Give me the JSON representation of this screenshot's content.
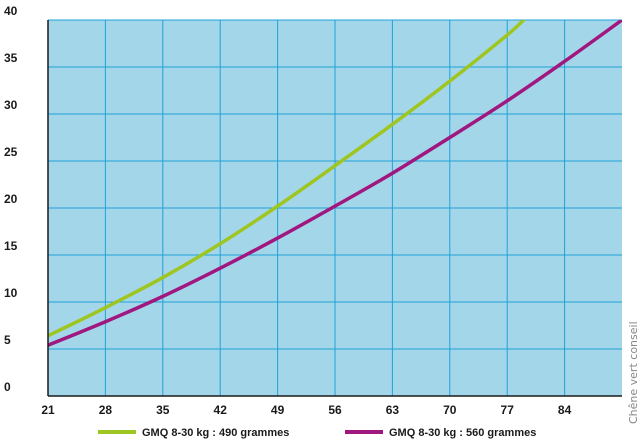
{
  "chart_data": {
    "type": "line",
    "xlim": [
      21,
      91
    ],
    "ylim": [
      0,
      40
    ],
    "x_ticks": [
      21,
      28,
      35,
      42,
      49,
      56,
      63,
      70,
      77,
      84
    ],
    "y_ticks": [
      0,
      5,
      10,
      15,
      20,
      25,
      30,
      35,
      40
    ],
    "grid": true,
    "legend_position": "bottom",
    "background_color": "#a4d6e9",
    "grid_color": "#1fa2d8",
    "series": [
      {
        "name": "GMQ 8-30 kg : 490 grammes",
        "color": "#9ec520",
        "x": [
          21,
          28,
          35,
          42,
          49,
          56,
          63,
          70,
          77,
          79
        ],
        "y": [
          6.4,
          9.4,
          12.6,
          16.2,
          20.2,
          24.5,
          28.9,
          33.5,
          38.4,
          40
        ]
      },
      {
        "name": "GMQ 8-30 kg : 560 grammes",
        "color": "#a0177f",
        "x": [
          21,
          28,
          35,
          42,
          49,
          56,
          63,
          70,
          77,
          84,
          91
        ],
        "y": [
          5.4,
          7.9,
          10.6,
          13.6,
          16.8,
          20.2,
          23.7,
          27.5,
          31.4,
          35.6,
          40
        ]
      }
    ]
  },
  "credit": "Chêne vert conseil"
}
